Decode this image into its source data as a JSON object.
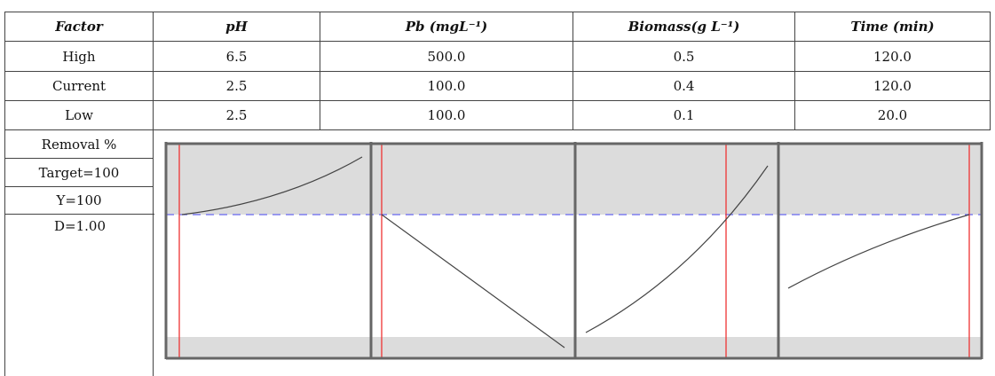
{
  "table": {
    "header": [
      "Factor",
      "pH",
      "Pb (mgL⁻¹)",
      "Biomass(g L⁻¹)",
      "Time (min)"
    ],
    "rows": [
      [
        "High",
        "6.5",
        "500.0",
        "0.5",
        "120.0"
      ],
      [
        "Current",
        "2.5",
        "100.0",
        "0.4",
        "120.0"
      ],
      [
        "Low",
        "2.5",
        "100.0",
        "0.1",
        "20.0"
      ]
    ]
  },
  "response": {
    "labels": [
      "Removal %",
      "Target=100",
      "Y=100",
      "D=1.00"
    ]
  }
}
